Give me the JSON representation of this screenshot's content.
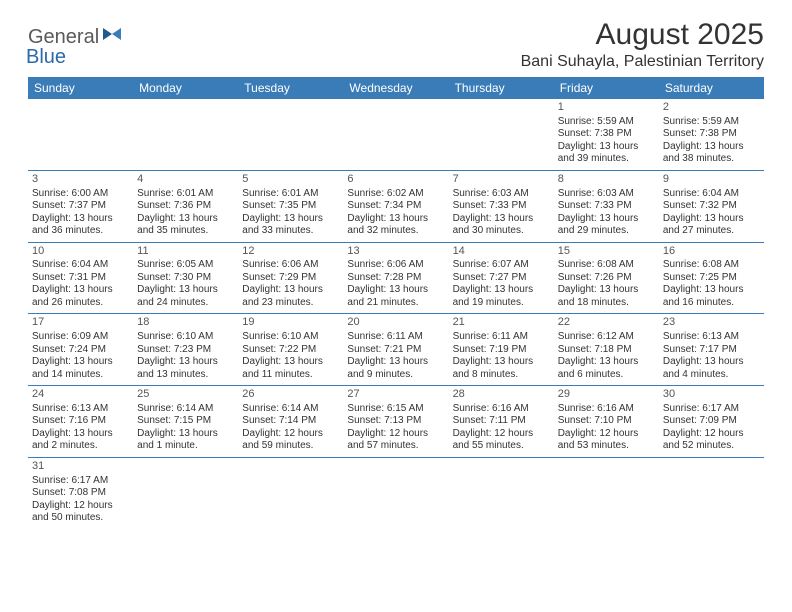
{
  "logo": {
    "general": "General",
    "blue": "Blue"
  },
  "title": "August 2025",
  "location": "Bani Suhayla, Palestinian Territory",
  "colors": {
    "header_bg": "#3a7cb8",
    "header_text": "#ffffff",
    "rule": "#3a7cb8",
    "logo_general": "#5a5a5a",
    "logo_blue": "#2b6aa8"
  },
  "day_headers": [
    "Sunday",
    "Monday",
    "Tuesday",
    "Wednesday",
    "Thursday",
    "Friday",
    "Saturday"
  ],
  "weeks": [
    [
      null,
      null,
      null,
      null,
      null,
      {
        "n": "1",
        "sr": "Sunrise: 5:59 AM",
        "ss": "Sunset: 7:38 PM",
        "dl": "Daylight: 13 hours and 39 minutes."
      },
      {
        "n": "2",
        "sr": "Sunrise: 5:59 AM",
        "ss": "Sunset: 7:38 PM",
        "dl": "Daylight: 13 hours and 38 minutes."
      }
    ],
    [
      {
        "n": "3",
        "sr": "Sunrise: 6:00 AM",
        "ss": "Sunset: 7:37 PM",
        "dl": "Daylight: 13 hours and 36 minutes."
      },
      {
        "n": "4",
        "sr": "Sunrise: 6:01 AM",
        "ss": "Sunset: 7:36 PM",
        "dl": "Daylight: 13 hours and 35 minutes."
      },
      {
        "n": "5",
        "sr": "Sunrise: 6:01 AM",
        "ss": "Sunset: 7:35 PM",
        "dl": "Daylight: 13 hours and 33 minutes."
      },
      {
        "n": "6",
        "sr": "Sunrise: 6:02 AM",
        "ss": "Sunset: 7:34 PM",
        "dl": "Daylight: 13 hours and 32 minutes."
      },
      {
        "n": "7",
        "sr": "Sunrise: 6:03 AM",
        "ss": "Sunset: 7:33 PM",
        "dl": "Daylight: 13 hours and 30 minutes."
      },
      {
        "n": "8",
        "sr": "Sunrise: 6:03 AM",
        "ss": "Sunset: 7:33 PM",
        "dl": "Daylight: 13 hours and 29 minutes."
      },
      {
        "n": "9",
        "sr": "Sunrise: 6:04 AM",
        "ss": "Sunset: 7:32 PM",
        "dl": "Daylight: 13 hours and 27 minutes."
      }
    ],
    [
      {
        "n": "10",
        "sr": "Sunrise: 6:04 AM",
        "ss": "Sunset: 7:31 PM",
        "dl": "Daylight: 13 hours and 26 minutes."
      },
      {
        "n": "11",
        "sr": "Sunrise: 6:05 AM",
        "ss": "Sunset: 7:30 PM",
        "dl": "Daylight: 13 hours and 24 minutes."
      },
      {
        "n": "12",
        "sr": "Sunrise: 6:06 AM",
        "ss": "Sunset: 7:29 PM",
        "dl": "Daylight: 13 hours and 23 minutes."
      },
      {
        "n": "13",
        "sr": "Sunrise: 6:06 AM",
        "ss": "Sunset: 7:28 PM",
        "dl": "Daylight: 13 hours and 21 minutes."
      },
      {
        "n": "14",
        "sr": "Sunrise: 6:07 AM",
        "ss": "Sunset: 7:27 PM",
        "dl": "Daylight: 13 hours and 19 minutes."
      },
      {
        "n": "15",
        "sr": "Sunrise: 6:08 AM",
        "ss": "Sunset: 7:26 PM",
        "dl": "Daylight: 13 hours and 18 minutes."
      },
      {
        "n": "16",
        "sr": "Sunrise: 6:08 AM",
        "ss": "Sunset: 7:25 PM",
        "dl": "Daylight: 13 hours and 16 minutes."
      }
    ],
    [
      {
        "n": "17",
        "sr": "Sunrise: 6:09 AM",
        "ss": "Sunset: 7:24 PM",
        "dl": "Daylight: 13 hours and 14 minutes."
      },
      {
        "n": "18",
        "sr": "Sunrise: 6:10 AM",
        "ss": "Sunset: 7:23 PM",
        "dl": "Daylight: 13 hours and 13 minutes."
      },
      {
        "n": "19",
        "sr": "Sunrise: 6:10 AM",
        "ss": "Sunset: 7:22 PM",
        "dl": "Daylight: 13 hours and 11 minutes."
      },
      {
        "n": "20",
        "sr": "Sunrise: 6:11 AM",
        "ss": "Sunset: 7:21 PM",
        "dl": "Daylight: 13 hours and 9 minutes."
      },
      {
        "n": "21",
        "sr": "Sunrise: 6:11 AM",
        "ss": "Sunset: 7:19 PM",
        "dl": "Daylight: 13 hours and 8 minutes."
      },
      {
        "n": "22",
        "sr": "Sunrise: 6:12 AM",
        "ss": "Sunset: 7:18 PM",
        "dl": "Daylight: 13 hours and 6 minutes."
      },
      {
        "n": "23",
        "sr": "Sunrise: 6:13 AM",
        "ss": "Sunset: 7:17 PM",
        "dl": "Daylight: 13 hours and 4 minutes."
      }
    ],
    [
      {
        "n": "24",
        "sr": "Sunrise: 6:13 AM",
        "ss": "Sunset: 7:16 PM",
        "dl": "Daylight: 13 hours and 2 minutes."
      },
      {
        "n": "25",
        "sr": "Sunrise: 6:14 AM",
        "ss": "Sunset: 7:15 PM",
        "dl": "Daylight: 13 hours and 1 minute."
      },
      {
        "n": "26",
        "sr": "Sunrise: 6:14 AM",
        "ss": "Sunset: 7:14 PM",
        "dl": "Daylight: 12 hours and 59 minutes."
      },
      {
        "n": "27",
        "sr": "Sunrise: 6:15 AM",
        "ss": "Sunset: 7:13 PM",
        "dl": "Daylight: 12 hours and 57 minutes."
      },
      {
        "n": "28",
        "sr": "Sunrise: 6:16 AM",
        "ss": "Sunset: 7:11 PM",
        "dl": "Daylight: 12 hours and 55 minutes."
      },
      {
        "n": "29",
        "sr": "Sunrise: 6:16 AM",
        "ss": "Sunset: 7:10 PM",
        "dl": "Daylight: 12 hours and 53 minutes."
      },
      {
        "n": "30",
        "sr": "Sunrise: 6:17 AM",
        "ss": "Sunset: 7:09 PM",
        "dl": "Daylight: 12 hours and 52 minutes."
      }
    ],
    [
      {
        "n": "31",
        "sr": "Sunrise: 6:17 AM",
        "ss": "Sunset: 7:08 PM",
        "dl": "Daylight: 12 hours and 50 minutes."
      },
      null,
      null,
      null,
      null,
      null,
      null
    ]
  ]
}
